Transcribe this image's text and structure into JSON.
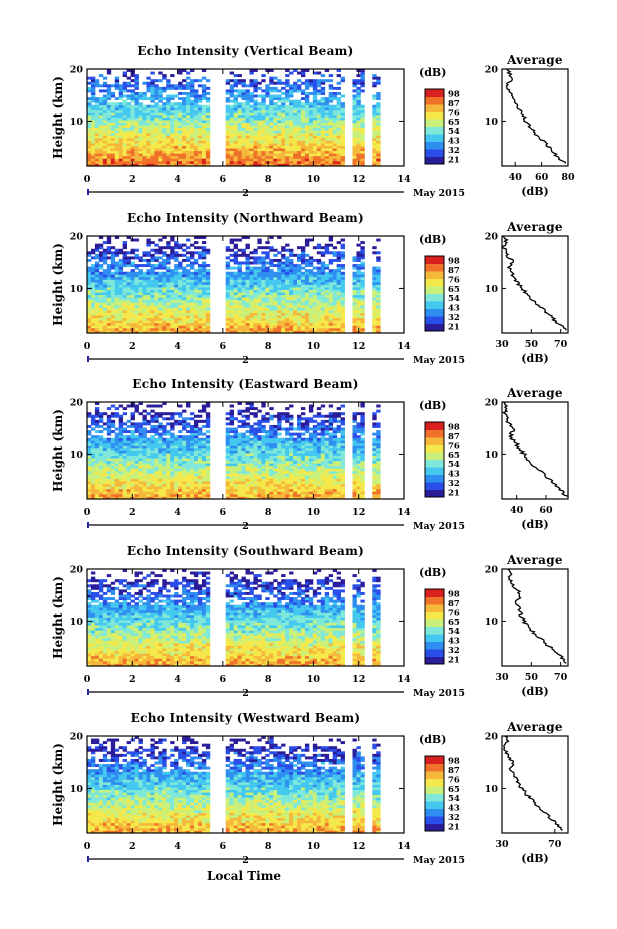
{
  "figure": {
    "xlabel": "Local Time",
    "month_label": "May 2015",
    "day_label": "2",
    "colorbar_unit": "(dB)",
    "colormap": [
      "#2a1d9a",
      "#2a4ee8",
      "#2f8ff0",
      "#44c8f0",
      "#7fe8d8",
      "#c8f07a",
      "#f5e84a",
      "#f6b83a",
      "#f0722a",
      "#d8201e"
    ],
    "gap_hours": [
      [
        5.5,
        6.1
      ],
      [
        11.4,
        11.8
      ],
      [
        12.3,
        12.6
      ],
      [
        12.9,
        13.2
      ]
    ]
  },
  "chart_data": [
    {
      "type": "heatmap",
      "title": "Echo Intensity (Vertical Beam)",
      "xlabel": "Local Time",
      "ylabel": "Height (km)",
      "x_range": [
        0,
        14
      ],
      "x_ticks": [
        0,
        2,
        4,
        6,
        8,
        10,
        12,
        14
      ],
      "y_range": [
        1.5,
        20
      ],
      "y_ticks": [
        10,
        20
      ],
      "colorbar": {
        "label": "(dB)",
        "ticks": [
          21,
          32,
          43,
          54,
          65,
          76,
          87,
          98
        ]
      },
      "profile": {
        "type": "line",
        "title": "Average",
        "xlabel": "(dB)",
        "x_range": [
          30,
          80
        ],
        "x_ticks": [
          40,
          60,
          80
        ],
        "y_ticks": [
          10,
          20
        ],
        "heights": [
          2,
          3,
          4,
          5,
          6,
          7,
          8,
          9,
          10,
          11,
          12,
          13,
          14,
          15,
          16,
          17,
          18,
          19,
          20
        ],
        "values": [
          79,
          72,
          70,
          66,
          62,
          58,
          54,
          51,
          48,
          46,
          44,
          41,
          39,
          37,
          35,
          34,
          38,
          36,
          34
        ]
      }
    },
    {
      "type": "heatmap",
      "title": "Echo Intensity (Northward Beam)",
      "xlabel": "Local Time",
      "ylabel": "Height (km)",
      "x_range": [
        0,
        14
      ],
      "x_ticks": [
        0,
        2,
        4,
        6,
        8,
        10,
        12,
        14
      ],
      "y_range": [
        1.5,
        20
      ],
      "y_ticks": [
        10,
        20
      ],
      "colorbar": {
        "label": "(dB)",
        "ticks": [
          21,
          32,
          43,
          54,
          65,
          76,
          87,
          98
        ]
      },
      "profile": {
        "type": "line",
        "title": "Average",
        "xlabel": "(dB)",
        "x_range": [
          30,
          75
        ],
        "x_ticks": [
          30,
          50,
          70
        ],
        "y_ticks": [
          10,
          20
        ],
        "heights": [
          2,
          3,
          4,
          5,
          6,
          7,
          8,
          9,
          10,
          11,
          12,
          13,
          14,
          15,
          16,
          17,
          18,
          19,
          20
        ],
        "values": [
          73,
          70,
          66,
          62,
          58,
          54,
          50,
          47,
          44,
          41,
          38,
          36,
          35,
          38,
          34,
          32,
          31,
          33,
          31
        ]
      }
    },
    {
      "type": "heatmap",
      "title": "Echo Intensity (Eastward Beam)",
      "xlabel": "Local Time",
      "ylabel": "Height (km)",
      "x_range": [
        0,
        14
      ],
      "x_ticks": [
        0,
        2,
        4,
        6,
        8,
        10,
        12,
        14
      ],
      "y_range": [
        1.5,
        20
      ],
      "y_ticks": [
        10,
        20
      ],
      "colorbar": {
        "label": "(dB)",
        "ticks": [
          21,
          32,
          43,
          54,
          65,
          76,
          87,
          98
        ]
      },
      "profile": {
        "type": "line",
        "title": "Average",
        "xlabel": "(dB)",
        "x_range": [
          30,
          75
        ],
        "x_ticks": [
          40,
          60
        ],
        "y_ticks": [
          10,
          20
        ],
        "heights": [
          2,
          3,
          4,
          5,
          6,
          7,
          8,
          9,
          10,
          11,
          12,
          13,
          14,
          15,
          16,
          17,
          18,
          19,
          20
        ],
        "values": [
          74,
          71,
          67,
          63,
          59,
          55,
          51,
          48,
          45,
          42,
          40,
          37,
          36,
          38,
          34,
          33,
          32,
          33,
          31
        ]
      }
    },
    {
      "type": "heatmap",
      "title": "Echo Intensity (Southward Beam)",
      "xlabel": "Local Time",
      "ylabel": "Height (km)",
      "x_range": [
        0,
        14
      ],
      "x_ticks": [
        0,
        2,
        4,
        6,
        8,
        10,
        12,
        14
      ],
      "y_range": [
        1.5,
        20
      ],
      "y_ticks": [
        10,
        20
      ],
      "colorbar": {
        "label": "(dB)",
        "ticks": [
          21,
          32,
          43,
          54,
          65,
          76,
          87,
          98
        ]
      },
      "profile": {
        "type": "line",
        "title": "Average",
        "xlabel": "(dB)",
        "x_range": [
          30,
          75
        ],
        "x_ticks": [
          30,
          50,
          70
        ],
        "y_ticks": [
          10,
          20
        ],
        "heights": [
          2,
          3,
          4,
          5,
          6,
          7,
          8,
          9,
          10,
          11,
          12,
          13,
          14,
          15,
          16,
          17,
          18,
          19,
          20
        ],
        "values": [
          74,
          71,
          67,
          63,
          59,
          55,
          51,
          48,
          45,
          43,
          42,
          41,
          40,
          43,
          40,
          37,
          35,
          36,
          34
        ]
      }
    },
    {
      "type": "heatmap",
      "title": "Echo Intensity (Westward Beam)",
      "xlabel": "Local Time",
      "ylabel": "Height (km)",
      "x_range": [
        0,
        14
      ],
      "x_ticks": [
        0,
        2,
        4,
        6,
        8,
        10,
        12,
        14
      ],
      "y_range": [
        1.5,
        20
      ],
      "y_ticks": [
        10,
        20
      ],
      "colorbar": {
        "label": "(dB)",
        "ticks": [
          21,
          32,
          43,
          54,
          65,
          76,
          87,
          98
        ]
      },
      "profile": {
        "type": "line",
        "title": "Average",
        "xlabel": "(dB)",
        "x_range": [
          30,
          80
        ],
        "x_ticks": [
          30,
          70
        ],
        "y_ticks": [
          10,
          20
        ],
        "heights": [
          2,
          3,
          4,
          5,
          6,
          7,
          8,
          9,
          10,
          11,
          12,
          13,
          14,
          15,
          16,
          17,
          18,
          19,
          20
        ],
        "values": [
          76,
          72,
          68,
          64,
          60,
          56,
          52,
          48,
          45,
          42,
          40,
          38,
          36,
          39,
          35,
          33,
          32,
          34,
          32
        ]
      }
    }
  ]
}
